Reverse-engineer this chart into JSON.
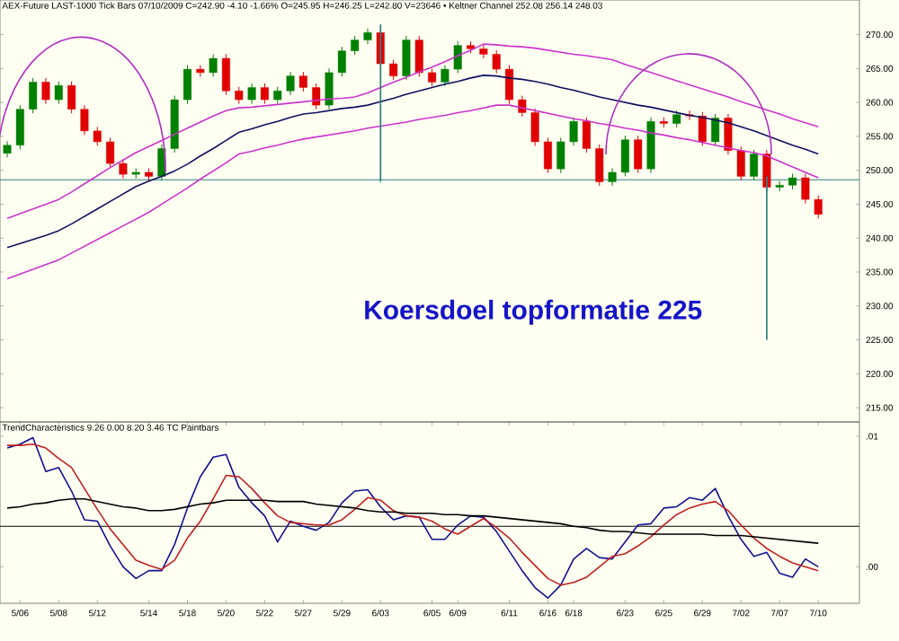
{
  "chart_data": [
    {
      "type": "candlestick",
      "title": "AEX-Future LAST-1000 Tick Bars 07/10/2009 C=242.90 -4.10 -1.66% O=245.95 H=246.25 L=242.80 V=23646 • Keltner Channel 252.08 256.14 248.03",
      "categories": [
        null,
        null,
        null,
        null,
        null,
        null,
        null,
        null,
        null,
        null,
        null,
        null,
        null,
        null,
        null,
        null,
        null,
        null,
        null,
        null,
        null,
        null,
        null,
        null,
        null,
        null,
        null,
        null,
        null,
        null,
        null,
        null,
        null,
        null,
        null,
        null,
        null,
        null,
        null,
        null,
        null,
        null,
        null,
        null,
        null,
        null,
        null,
        null,
        null,
        null,
        null,
        null,
        null,
        null,
        null,
        null,
        null,
        null,
        null,
        null,
        null,
        null,
        null,
        null
      ],
      "ohlc": [
        [
          252.5,
          254.3,
          251.9,
          253.7
        ],
        [
          253.7,
          259.6,
          253.1,
          259.0
        ],
        [
          259.0,
          263.6,
          258.4,
          263.0
        ],
        [
          263.0,
          263.6,
          259.8,
          260.4
        ],
        [
          260.4,
          263.1,
          259.8,
          262.5
        ],
        [
          262.5,
          263.1,
          258.4,
          259.0
        ],
        [
          259.0,
          259.6,
          255.2,
          255.8
        ],
        [
          255.8,
          256.4,
          253.6,
          254.2
        ],
        [
          254.2,
          254.8,
          250.4,
          251.0
        ],
        [
          251.0,
          251.6,
          248.8,
          249.4
        ],
        [
          249.4,
          250.3,
          248.8,
          249.7
        ],
        [
          249.7,
          250.3,
          248.5,
          249.1
        ],
        [
          249.1,
          253.8,
          248.5,
          253.2
        ],
        [
          253.2,
          261.0,
          252.6,
          260.4
        ],
        [
          260.4,
          265.5,
          259.8,
          264.9
        ],
        [
          264.9,
          265.5,
          263.8,
          264.4
        ],
        [
          264.4,
          267.1,
          263.8,
          266.5
        ],
        [
          266.5,
          267.1,
          261.1,
          261.7
        ],
        [
          261.7,
          262.3,
          259.8,
          260.4
        ],
        [
          260.4,
          262.8,
          259.8,
          262.2
        ],
        [
          262.2,
          262.8,
          259.8,
          260.4
        ],
        [
          260.4,
          262.3,
          259.8,
          261.7
        ],
        [
          261.7,
          264.5,
          261.1,
          263.9
        ],
        [
          263.9,
          264.5,
          261.6,
          262.2
        ],
        [
          262.2,
          262.8,
          259.0,
          259.6
        ],
        [
          259.6,
          265.0,
          259.0,
          264.4
        ],
        [
          264.4,
          268.2,
          263.8,
          267.6
        ],
        [
          267.6,
          269.8,
          267.0,
          269.2
        ],
        [
          269.2,
          270.9,
          268.6,
          270.3
        ],
        [
          270.3,
          270.9,
          265.1,
          265.7
        ],
        [
          265.7,
          266.3,
          263.3,
          263.9
        ],
        [
          263.9,
          269.8,
          263.3,
          269.2
        ],
        [
          269.2,
          269.8,
          263.8,
          264.4
        ],
        [
          264.4,
          265.0,
          262.4,
          263.0
        ],
        [
          263.0,
          265.5,
          262.4,
          264.9
        ],
        [
          264.9,
          269.0,
          264.3,
          268.4
        ],
        [
          268.4,
          269.0,
          267.3,
          267.9
        ],
        [
          267.9,
          268.5,
          266.5,
          267.1
        ],
        [
          267.1,
          267.7,
          264.3,
          264.9
        ],
        [
          264.9,
          265.5,
          259.8,
          260.4
        ],
        [
          260.4,
          261.0,
          257.9,
          258.5
        ],
        [
          258.5,
          259.1,
          253.6,
          254.2
        ],
        [
          254.2,
          254.8,
          249.6,
          250.2
        ],
        [
          250.2,
          254.8,
          249.6,
          254.2
        ],
        [
          254.2,
          257.8,
          253.6,
          257.2
        ],
        [
          257.2,
          257.8,
          252.6,
          253.2
        ],
        [
          253.2,
          253.8,
          247.7,
          248.3
        ],
        [
          248.3,
          250.3,
          247.7,
          249.7
        ],
        [
          249.7,
          255.1,
          249.1,
          254.5
        ],
        [
          254.5,
          255.1,
          249.6,
          250.2
        ],
        [
          250.2,
          257.8,
          249.6,
          257.2
        ],
        [
          257.2,
          257.8,
          256.3,
          256.9
        ],
        [
          256.9,
          258.8,
          256.3,
          258.2
        ],
        [
          258.2,
          258.8,
          257.4,
          258.0
        ],
        [
          258.0,
          258.6,
          253.6,
          254.2
        ],
        [
          254.2,
          258.3,
          253.6,
          257.7
        ],
        [
          257.7,
          258.3,
          252.3,
          252.9
        ],
        [
          252.9,
          253.5,
          248.5,
          249.1
        ],
        [
          249.1,
          253.0,
          248.5,
          252.4
        ],
        [
          252.4,
          253.0,
          246.9,
          247.5
        ],
        [
          247.5,
          248.4,
          246.9,
          247.8
        ],
        [
          247.8,
          249.5,
          247.2,
          248.9
        ],
        [
          248.9,
          249.5,
          245.1,
          245.7
        ],
        [
          245.7,
          246.3,
          242.9,
          243.5
        ]
      ],
      "colors": [
        "#008000",
        "#008000",
        "#008000",
        "#e00000",
        "#008000",
        "#e00000",
        "#e00000",
        "#e00000",
        "#e00000",
        "#e00000",
        "#008000",
        "#e00000",
        "#008000",
        "#008000",
        "#008000",
        "#e00000",
        "#008000",
        "#e00000",
        "#e00000",
        "#008000",
        "#e00000",
        "#008000",
        "#008000",
        "#e00000",
        "#e00000",
        "#008000",
        "#008000",
        "#008000",
        "#008000",
        "#e00000",
        "#e00000",
        "#008000",
        "#e00000",
        "#e00000",
        "#008000",
        "#008000",
        "#e00000",
        "#e00000",
        "#e00000",
        "#e00000",
        "#e00000",
        "#e00000",
        "#e00000",
        "#008000",
        "#008000",
        "#e00000",
        "#e00000",
        "#008000",
        "#008000",
        "#e00000",
        "#008000",
        "#e00000",
        "#008000",
        "#e00000",
        "#e00000",
        "#008000",
        "#e00000",
        "#e00000",
        "#008000",
        "#e00000",
        "#008000",
        "#008000",
        "#e00000",
        "#e00000"
      ],
      "series": [
        {
          "type": "line",
          "color": "#cc33cc",
          "values": [
            242.9,
            243.6,
            244.3,
            245.0,
            245.7,
            246.8,
            248.0,
            249.2,
            250.4,
            251.5,
            252.6,
            253.5,
            254.4,
            255.3,
            256.2,
            257.1,
            258.0,
            258.8,
            259.2,
            259.3,
            259.5,
            259.7,
            259.9,
            260.1,
            260.3,
            260.5,
            260.6,
            260.8,
            261.4,
            262.2,
            263.0,
            263.7,
            264.5,
            265.2,
            266.0,
            266.9,
            267.7,
            268.6,
            268.5,
            268.3,
            268.2,
            268.0,
            267.7,
            267.4,
            267.1,
            266.9,
            266.6,
            266.3,
            265.6,
            265.0,
            264.4,
            263.8,
            263.2,
            262.6,
            262.0,
            261.4,
            260.8,
            260.1,
            259.5,
            258.9,
            258.3,
            257.6,
            257.0,
            256.4
          ]
        },
        {
          "type": "line",
          "color": "#101060",
          "values": [
            238.6,
            239.2,
            239.8,
            240.4,
            241.1,
            242.1,
            243.2,
            244.3,
            245.4,
            246.5,
            247.6,
            248.4,
            249.1,
            249.9,
            250.9,
            252.1,
            253.2,
            254.4,
            255.6,
            256.1,
            256.7,
            257.2,
            257.8,
            258.3,
            258.5,
            258.8,
            259.1,
            259.3,
            259.6,
            260.1,
            260.6,
            261.2,
            261.7,
            262.2,
            262.7,
            263.1,
            263.6,
            264.0,
            263.9,
            263.6,
            263.4,
            263.1,
            262.7,
            262.2,
            261.8,
            261.3,
            260.8,
            260.4,
            260.0,
            259.6,
            259.3,
            258.9,
            258.5,
            258.1,
            257.8,
            257.4,
            257.0,
            256.4,
            255.8,
            255.1,
            254.4,
            253.7,
            253.1,
            252.4
          ]
        },
        {
          "type": "line",
          "color": "#cc33cc",
          "values": [
            234.0,
            234.7,
            235.4,
            236.1,
            236.8,
            237.8,
            238.8,
            239.8,
            240.8,
            241.8,
            242.8,
            243.8,
            245.0,
            246.2,
            247.4,
            248.7,
            249.9,
            251.1,
            252.4,
            252.8,
            253.3,
            253.7,
            254.2,
            254.6,
            254.9,
            255.2,
            255.5,
            255.8,
            256.2,
            256.5,
            256.8,
            257.1,
            257.5,
            257.8,
            258.1,
            258.5,
            258.8,
            259.2,
            259.6,
            259.6,
            259.2,
            258.8,
            258.4,
            258.0,
            257.6,
            257.3,
            256.9,
            256.6,
            256.2,
            255.9,
            255.5,
            255.2,
            254.8,
            254.5,
            254.1,
            253.7,
            253.3,
            252.9,
            252.6,
            252.1,
            251.3,
            250.5,
            249.7,
            248.9
          ]
        },
        {
          "type": "bar",
          "color": "#2e7f80",
          "values": [
            null,
            null,
            null,
            null,
            null,
            null,
            null,
            null,
            null,
            null,
            null,
            null,
            null,
            null,
            null,
            null,
            null,
            null,
            null,
            null,
            null,
            null,
            null,
            null,
            null,
            null,
            null,
            null,
            null,
            23.2,
            null,
            null,
            null,
            null,
            null,
            null,
            null,
            null,
            null,
            null,
            null,
            null,
            null,
            null,
            null,
            null,
            null,
            null,
            null,
            null,
            null,
            null,
            null,
            null,
            null,
            null,
            null,
            null,
            null,
            24.1,
            null,
            null,
            null,
            null
          ],
          "base": [
            null,
            null,
            null,
            null,
            null,
            null,
            null,
            null,
            null,
            null,
            null,
            null,
            null,
            null,
            null,
            null,
            null,
            null,
            null,
            null,
            null,
            null,
            null,
            null,
            null,
            null,
            null,
            null,
            null,
            248.3,
            null,
            null,
            null,
            null,
            null,
            null,
            null,
            null,
            null,
            null,
            null,
            null,
            null,
            null,
            null,
            null,
            null,
            null,
            null,
            null,
            null,
            null,
            null,
            null,
            null,
            null,
            null,
            null,
            null,
            225.0,
            null,
            null,
            null,
            null
          ]
        }
      ],
      "ref_lines": [
        {
          "axis": "y",
          "value": 248.6,
          "color": "#2e7f80"
        }
      ],
      "annotations": [
        "Koersdoel topformatie 225"
      ],
      "ylim": [
        212.9,
        275.1
      ],
      "yticks": [
        {
          "value": 215,
          "label": "215.00"
        },
        {
          "value": 220,
          "label": "220.00"
        },
        {
          "value": 225,
          "label": "225.00"
        },
        {
          "value": 230,
          "label": "230.00"
        },
        {
          "value": 235,
          "label": "235.00"
        },
        {
          "value": 240,
          "label": "240.00"
        },
        {
          "value": 245,
          "label": "245.00"
        },
        {
          "value": 250,
          "label": "250.00"
        },
        {
          "value": 255,
          "label": "255.00"
        },
        {
          "value": 260,
          "label": "260.00"
        },
        {
          "value": 265,
          "label": "265.00"
        },
        {
          "value": 270,
          "label": "270.00"
        }
      ],
      "tick_labels": "y"
    },
    {
      "type": "line",
      "title": "TrendCharacteristics 9.26 0.00 8.20 3.46 TC Paintbars",
      "categories": [
        null,
        "5/06",
        null,
        null,
        "5/08",
        null,
        null,
        "5/12",
        null,
        null,
        null,
        "5/14",
        null,
        null,
        "5/18",
        null,
        null,
        "5/20",
        null,
        null,
        "5/22",
        null,
        null,
        "5/27",
        null,
        null,
        "5/29",
        null,
        null,
        "6/03",
        null,
        null,
        null,
        "6/05",
        null,
        "6/09",
        null,
        null,
        null,
        "6/11",
        null,
        null,
        "6/16",
        null,
        "6/18",
        null,
        null,
        null,
        "6/23",
        null,
        null,
        "6/25",
        null,
        null,
        "6/29",
        null,
        null,
        "7/02",
        null,
        null,
        "7/07",
        null,
        null,
        "7/10"
      ],
      "series": [
        {
          "color": "#101090",
          "values": [
            0.0091,
            0.0094,
            0.0099,
            0.0073,
            0.0076,
            0.0058,
            0.0036,
            0.0035,
            0.0016,
            0.0,
            -0.0009,
            -0.0003,
            -0.0003,
            0.0017,
            0.0045,
            0.0069,
            0.0084,
            0.0086,
            0.0061,
            0.0049,
            0.0039,
            0.0019,
            0.0035,
            0.0031,
            0.0028,
            0.0034,
            0.0049,
            0.0058,
            0.0059,
            0.0046,
            0.0036,
            0.0039,
            0.0038,
            0.0021,
            0.0021,
            0.0032,
            0.0039,
            0.0038,
            0.0027,
            0.0012,
            -0.0003,
            -0.0016,
            -0.0024,
            -0.0014,
            0.0006,
            0.0014,
            0.0007,
            0.0006,
            0.0019,
            0.0032,
            0.0033,
            0.0045,
            0.0046,
            0.0053,
            0.0051,
            0.006,
            0.0039,
            0.0021,
            0.0008,
            0.0011,
            -0.0005,
            -0.0008,
            0.0006,
            0.0
          ]
        },
        {
          "color": "#c02020",
          "values": [
            0.0093,
            0.0093,
            0.0094,
            0.0091,
            0.0083,
            0.0076,
            0.006,
            0.0044,
            0.0029,
            0.0017,
            0.0005,
            0.0001,
            -0.0002,
            0.0005,
            0.0022,
            0.0035,
            0.0052,
            0.007,
            0.0069,
            0.006,
            0.0049,
            0.0039,
            0.0034,
            0.0033,
            0.0032,
            0.0032,
            0.0036,
            0.0044,
            0.0053,
            0.0051,
            0.0043,
            0.0039,
            0.0038,
            0.0035,
            0.0029,
            0.0025,
            0.0031,
            0.0037,
            0.003,
            0.0022,
            0.0011,
            0.0001,
            -0.0009,
            -0.0014,
            -0.0012,
            -0.0008,
            0.0,
            0.0008,
            0.001,
            0.0016,
            0.0023,
            0.0032,
            0.004,
            0.0045,
            0.0048,
            0.005,
            0.0043,
            0.0032,
            0.0022,
            0.0014,
            0.0008,
            0.0003,
            0.0,
            -0.0003
          ]
        },
        {
          "color": "#000000",
          "values": [
            0.0045,
            0.0046,
            0.0048,
            0.0049,
            0.0051,
            0.0052,
            0.0052,
            0.005,
            0.0048,
            0.0046,
            0.0045,
            0.0043,
            0.0043,
            0.0044,
            0.0046,
            0.0048,
            0.0049,
            0.0051,
            0.0051,
            0.0051,
            0.0051,
            0.005,
            0.005,
            0.005,
            0.0048,
            0.0047,
            0.0046,
            0.0045,
            0.0043,
            0.0042,
            0.0042,
            0.0041,
            0.0041,
            0.0041,
            0.004,
            0.004,
            0.0039,
            0.0039,
            0.0038,
            0.0037,
            0.0036,
            0.0035,
            0.0034,
            0.0033,
            0.0031,
            0.003,
            0.0028,
            0.0027,
            0.0027,
            0.0026,
            0.0025,
            0.0025,
            0.0025,
            0.0025,
            0.0025,
            0.0024,
            0.0024,
            0.0024,
            0.0023,
            0.0022,
            0.0021,
            0.002,
            0.0019,
            0.0018
          ]
        }
      ],
      "ref_lines": [
        {
          "axis": "y",
          "value": 0.0031,
          "color": "#000000"
        }
      ],
      "ylim": [
        -0.0028,
        0.0111
      ],
      "yticks": [
        {
          "value": 0.01,
          "label": ".01"
        },
        {
          "value": 0,
          "label": ".00"
        }
      ]
    }
  ]
}
